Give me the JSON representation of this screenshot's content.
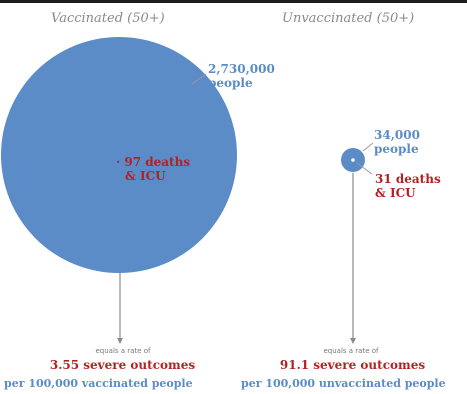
{
  "vaccinated": {
    "title": "Vaccinated (50+)",
    "people_number": "2,730,000",
    "people_label": "people",
    "deaths_line1": "· 97 deaths",
    "deaths_line2": "& ICU",
    "rate_intro": "equals a rate of",
    "rate_value": "3.55 severe outcomes",
    "rate_per": "per 100,000 vaccinated people"
  },
  "unvaccinated": {
    "title": "Unvaccinated (50+)",
    "people_number": "34,000",
    "people_label": "people",
    "deaths_line1": "31 deaths",
    "deaths_line2": "& ICU",
    "rate_intro": "equals a rate of",
    "rate_value": "91.1 severe outcomes",
    "rate_per": "per 100,000 unvaccinated people"
  },
  "colors": {
    "circle_fill": "#5b8cc8",
    "people_text": "#5b8cc8",
    "deaths_text": "#b22222",
    "connector": "#8a8a8a",
    "title_text": "#8a8a8a"
  }
}
